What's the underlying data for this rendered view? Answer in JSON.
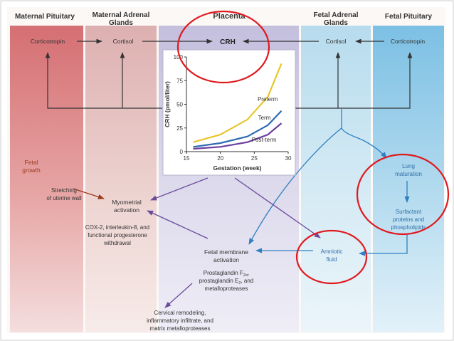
{
  "columns": {
    "maternal_pituitary": "Maternal Pituitary",
    "maternal_adrenal_line1": "Maternal Adrenal",
    "maternal_adrenal_line2": "Glands",
    "placenta": "Placenta",
    "fetal_adrenal_line1": "Fetal Adrenal",
    "fetal_adrenal_line2": "Glands",
    "fetal_pituitary": "Fetal Pituitary"
  },
  "hormones": {
    "corticotropin_maternal": "Corticotropin",
    "cortisol_maternal": "Cortisol",
    "crh": "CRH",
    "cortisol_fetal": "Cortisol",
    "corticotropin_fetal": "Corticotropin"
  },
  "labels": {
    "fetal_growth_1": "Fetal",
    "fetal_growth_2": "growth",
    "stretching_1": "Stretching",
    "stretching_2": "of uterine wall",
    "myometrial_1": "Myometrial",
    "myometrial_2": "activation",
    "cox_1": "COX-2, interleukin-8, and",
    "cox_2": "functional progesterone",
    "cox_3": "withdrawal",
    "fetal_membrane_1": "Fetal membrane",
    "fetal_membrane_2": "activation",
    "prostaglandin_1": "Prostaglandin F",
    "prostaglandin_1_sub": "2α",
    "prostaglandin_1_end": ",",
    "prostaglandin_2": "prostaglandin E",
    "prostaglandin_2_sub": "2",
    "prostaglandin_2_end": ", and",
    "prostaglandin_3": "metalloproteases",
    "cervical_1": "Cervical remodeling,",
    "cervical_2": "inflammatory infiltrate, and",
    "cervical_3": "matrix metalloproteases",
    "lung_1": "Lung",
    "lung_2": "maturation",
    "surfactant_1": "Surfactant",
    "surfactant_2": "proteins and",
    "surfactant_3": "phospholipids",
    "amniotic_1": "Amniotic",
    "amniotic_2": "fluid"
  },
  "colors": {
    "annotation_circle": "#e0191f",
    "feedback_arrow": "#333333",
    "maternal_arrow": "#9b3a1f",
    "placental_arrow": "#6a4a9a",
    "fetal_arrow": "#2f7fc1",
    "preterm": "#e8c62a",
    "term": "#2e6bb0",
    "postterm": "#6a3fa0"
  },
  "chart_data": {
    "type": "line",
    "title": "",
    "xlabel": "Gestation (week)",
    "ylabel": "CRH (pmol/liter)",
    "xlim": [
      15,
      30
    ],
    "ylim": [
      0,
      100
    ],
    "xticks": [
      15,
      20,
      25,
      30
    ],
    "yticks": [
      0,
      25,
      50,
      75,
      100
    ],
    "series": [
      {
        "name": "Preterm",
        "x": [
          16,
          20,
          24,
          27,
          29
        ],
        "y": [
          10,
          18,
          34,
          58,
          93
        ]
      },
      {
        "name": "Term",
        "x": [
          16,
          20,
          24,
          27,
          29
        ],
        "y": [
          5,
          9,
          16,
          28,
          43
        ]
      },
      {
        "name": "Post-term",
        "x": [
          16,
          20,
          24,
          27,
          29
        ],
        "y": [
          3,
          5,
          10,
          18,
          30
        ]
      }
    ]
  }
}
